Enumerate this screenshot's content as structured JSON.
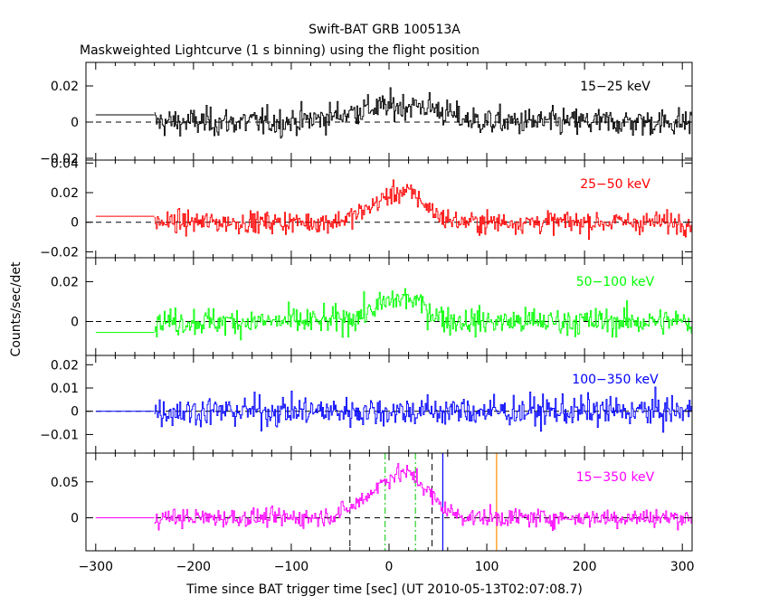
{
  "chart_data": {
    "type": "line",
    "title": "Swift-BAT GRB 100513A",
    "subtitle": "Maskweighted Lightcurve (1 s binning) using the flight position",
    "xlabel": "Time since BAT trigger time [sec] (UT 2010-05-13T02:07:08.7)",
    "ylabel": "Counts/sec/det",
    "xlim": [
      -310,
      310
    ],
    "xticks": [
      -300,
      -200,
      -100,
      0,
      100,
      200,
      300
    ],
    "xtick_labels": [
      "−300",
      "−200",
      "−100",
      "0",
      "100",
      "200",
      "300"
    ],
    "panels": [
      {
        "band": "15−25 keV",
        "color": "#000000",
        "ylim": [
          -0.021,
          0.033
        ],
        "yticks": [
          -0.02,
          0,
          0.02
        ],
        "ytick_labels": [
          "−0.02",
          "0",
          "0.02"
        ],
        "pre_level": 0.004,
        "noise": 0.0065,
        "bumps": [
          [
            -5,
            40,
            0.008
          ],
          [
            40,
            20,
            0.004
          ]
        ]
      },
      {
        "band": "25−50 keV",
        "color": "#ff0000",
        "ylim": [
          -0.024,
          0.042
        ],
        "yticks": [
          -0.02,
          0,
          0.02,
          0.04
        ],
        "ytick_labels": [
          "−0.02",
          "0",
          "0.02",
          "0.04"
        ],
        "pre_level": 0.004,
        "noise": 0.0062,
        "bumps": [
          [
            5,
            25,
            0.017
          ],
          [
            25,
            15,
            0.006
          ]
        ]
      },
      {
        "band": "50−100 keV",
        "color": "#00ff00",
        "ylim": [
          -0.017,
          0.032
        ],
        "yticks": [
          0,
          0.02
        ],
        "ytick_labels": [
          "0",
          "0.02"
        ],
        "pre_level": -0.0055,
        "noise": 0.0058,
        "bumps": [
          [
            5,
            25,
            0.009
          ],
          [
            25,
            15,
            0.004
          ]
        ]
      },
      {
        "band": "100−350 keV",
        "color": "#0000ff",
        "ylim": [
          -0.018,
          0.024
        ],
        "yticks": [
          -0.01,
          0,
          0.01,
          0.02
        ],
        "ytick_labels": [
          "−0.01",
          "0",
          "0.01",
          "0.02"
        ],
        "pre_level": 0.0,
        "noise": 0.0055,
        "bumps": []
      },
      {
        "band": "15−350 keV",
        "color": "#ff00ff",
        "ylim": [
          -0.046,
          0.09
        ],
        "yticks": [
          0,
          0.05
        ],
        "ytick_labels": [
          "0",
          "0.05"
        ],
        "pre_level": 0.0,
        "noise": 0.011,
        "bumps": [
          [
            5,
            28,
            0.05
          ],
          [
            25,
            18,
            0.018
          ]
        ]
      }
    ],
    "markers": {
      "black_dashed": [
        -40,
        44
      ],
      "green_dashdot": [
        -4,
        27
      ],
      "blue": 55,
      "orange": 110
    },
    "pre_trigger_range": [
      -300,
      -240
    ]
  }
}
